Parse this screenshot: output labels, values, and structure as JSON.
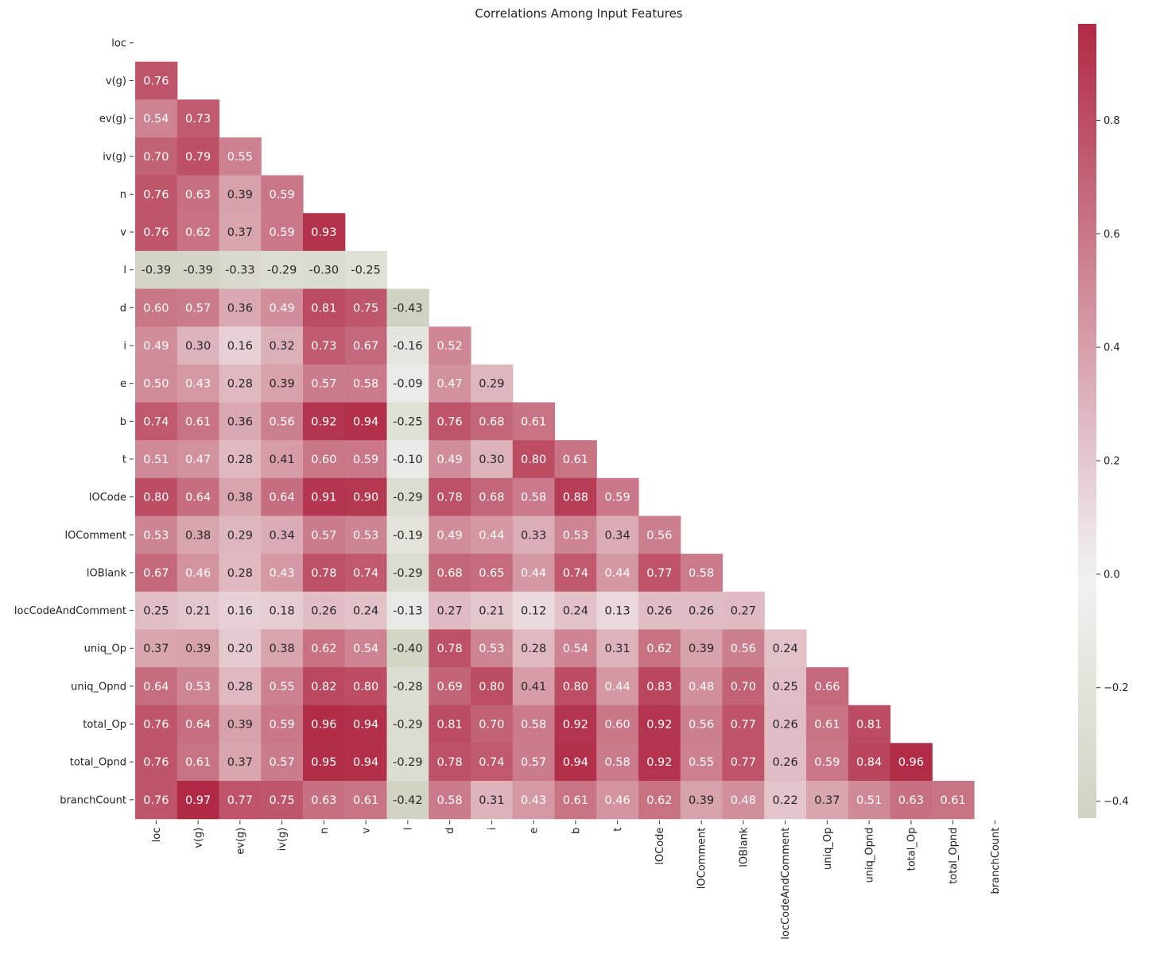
{
  "chart_data": {
    "type": "heatmap",
    "title": "Correlations Among Input Features",
    "mask": "upper-triangle-including-diagonal",
    "labels": [
      "loc",
      "v(g)",
      "ev(g)",
      "iv(g)",
      "n",
      "v",
      "l",
      "d",
      "i",
      "e",
      "b",
      "t",
      "lOCode",
      "lOComment",
      "lOBlank",
      "locCodeAndComment",
      "uniq_Op",
      "uniq_Opnd",
      "total_Op",
      "total_Opnd",
      "branchCount"
    ],
    "values": [
      [],
      [
        0.76
      ],
      [
        0.54,
        0.73
      ],
      [
        0.7,
        0.79,
        0.55
      ],
      [
        0.76,
        0.63,
        0.39,
        0.59
      ],
      [
        0.76,
        0.62,
        0.37,
        0.59,
        0.93
      ],
      [
        -0.39,
        -0.39,
        -0.33,
        -0.29,
        -0.3,
        -0.25
      ],
      [
        0.6,
        0.57,
        0.36,
        0.49,
        0.81,
        0.75,
        -0.43
      ],
      [
        0.49,
        0.3,
        0.16,
        0.32,
        0.73,
        0.67,
        -0.16,
        0.52
      ],
      [
        0.5,
        0.43,
        0.28,
        0.39,
        0.57,
        0.58,
        -0.09,
        0.47,
        0.29
      ],
      [
        0.74,
        0.61,
        0.36,
        0.56,
        0.92,
        0.94,
        -0.25,
        0.76,
        0.68,
        0.61
      ],
      [
        0.51,
        0.47,
        0.28,
        0.41,
        0.6,
        0.59,
        -0.1,
        0.49,
        0.3,
        0.8,
        0.61
      ],
      [
        0.8,
        0.64,
        0.38,
        0.64,
        0.91,
        0.9,
        -0.29,
        0.78,
        0.68,
        0.58,
        0.88,
        0.59
      ],
      [
        0.53,
        0.38,
        0.29,
        0.34,
        0.57,
        0.53,
        -0.19,
        0.49,
        0.44,
        0.33,
        0.53,
        0.34,
        0.56
      ],
      [
        0.67,
        0.46,
        0.28,
        0.43,
        0.78,
        0.74,
        -0.29,
        0.68,
        0.65,
        0.44,
        0.74,
        0.44,
        0.77,
        0.58
      ],
      [
        0.25,
        0.21,
        0.16,
        0.18,
        0.26,
        0.24,
        -0.13,
        0.27,
        0.21,
        0.12,
        0.24,
        0.13,
        0.26,
        0.26,
        0.27
      ],
      [
        0.37,
        0.39,
        0.2,
        0.38,
        0.62,
        0.54,
        -0.4,
        0.78,
        0.53,
        0.28,
        0.54,
        0.31,
        0.62,
        0.39,
        0.56,
        0.24
      ],
      [
        0.64,
        0.53,
        0.28,
        0.55,
        0.82,
        0.8,
        -0.28,
        0.69,
        0.8,
        0.41,
        0.8,
        0.44,
        0.83,
        0.48,
        0.7,
        0.25,
        0.66
      ],
      [
        0.76,
        0.64,
        0.39,
        0.59,
        0.96,
        0.94,
        -0.29,
        0.81,
        0.7,
        0.58,
        0.92,
        0.6,
        0.92,
        0.56,
        0.77,
        0.26,
        0.61,
        0.81
      ],
      [
        0.76,
        0.61,
        0.37,
        0.57,
        0.95,
        0.94,
        -0.29,
        0.78,
        0.74,
        0.57,
        0.94,
        0.58,
        0.92,
        0.55,
        0.77,
        0.26,
        0.59,
        0.84,
        0.96
      ],
      [
        0.76,
        0.97,
        0.77,
        0.75,
        0.63,
        0.61,
        -0.42,
        0.58,
        0.31,
        0.43,
        0.61,
        0.46,
        0.62,
        0.39,
        0.48,
        0.22,
        0.37,
        0.51,
        0.63,
        0.61
      ]
    ],
    "vmin": -0.43,
    "vmax": 0.97,
    "colormap": {
      "negative": "#a8ab86",
      "center": "#f2f2f2",
      "positive": "#b02a45"
    },
    "colorbar_ticks": [
      -0.4,
      -0.2,
      0.0,
      0.2,
      0.4,
      0.6,
      0.8
    ],
    "colorbar_tick_labels": [
      "−0.4",
      "−0.2",
      "0.0",
      "0.2",
      "0.4",
      "0.6",
      "0.8"
    ],
    "annotation_format": "0.00"
  }
}
